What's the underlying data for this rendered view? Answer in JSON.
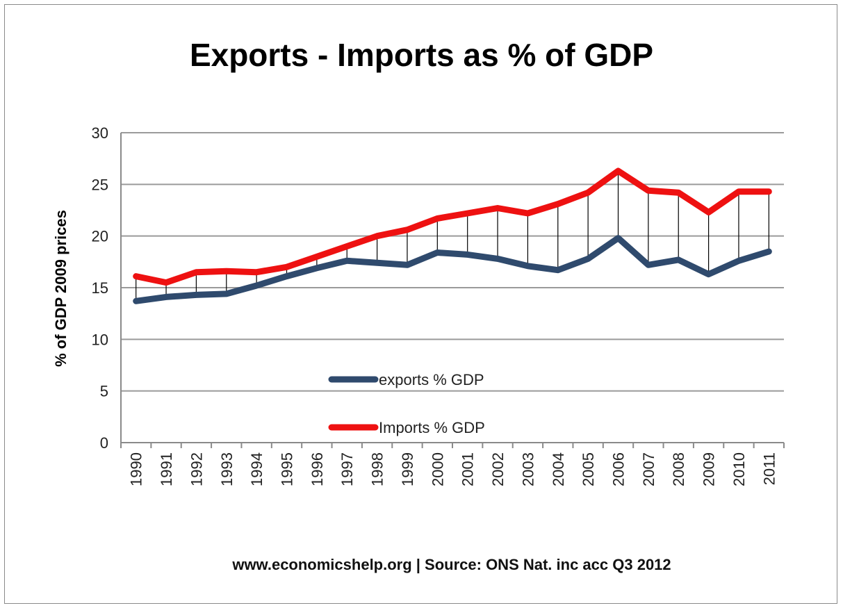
{
  "colors": {
    "exports": "#2f4a6d",
    "imports": "#ee1111",
    "grid": "#9a9a9a",
    "droplines": "#000000"
  },
  "chart_data": {
    "type": "line",
    "title": "Exports - Imports as % of GDP",
    "ylabel": "% of GDP 2009 prices",
    "xlabel": "",
    "ylim": [
      0,
      30
    ],
    "yticks": [
      "0",
      "5",
      "10",
      "15",
      "20",
      "25",
      "30"
    ],
    "grid": true,
    "legend_position": "lower-center",
    "x": [
      "1990",
      "1991",
      "1992",
      "1993",
      "1994",
      "1995",
      "1996",
      "1997",
      "1998",
      "1999",
      "2000",
      "2001",
      "2002",
      "2003",
      "2004",
      "2005",
      "2006",
      "2007",
      "2008",
      "2009",
      "2010",
      "2011"
    ],
    "series": [
      {
        "name": "exports % GDP",
        "values": [
          13.7,
          14.1,
          14.3,
          14.4,
          15.2,
          16.1,
          16.9,
          17.6,
          17.4,
          17.2,
          18.4,
          18.2,
          17.8,
          17.1,
          16.7,
          17.8,
          19.8,
          17.2,
          17.7,
          16.3,
          17.6,
          18.5
        ]
      },
      {
        "name": "Imports % GDP",
        "values": [
          16.1,
          15.5,
          16.5,
          16.6,
          16.5,
          17.0,
          18.0,
          19.0,
          20.0,
          20.6,
          21.7,
          22.2,
          22.7,
          22.2,
          23.1,
          24.2,
          26.3,
          24.4,
          24.2,
          22.3,
          24.3,
          24.3
        ]
      }
    ],
    "drop_lines": true
  },
  "footer": "www.economicshelp.org | Source: ONS Nat. inc acc Q3 2012"
}
